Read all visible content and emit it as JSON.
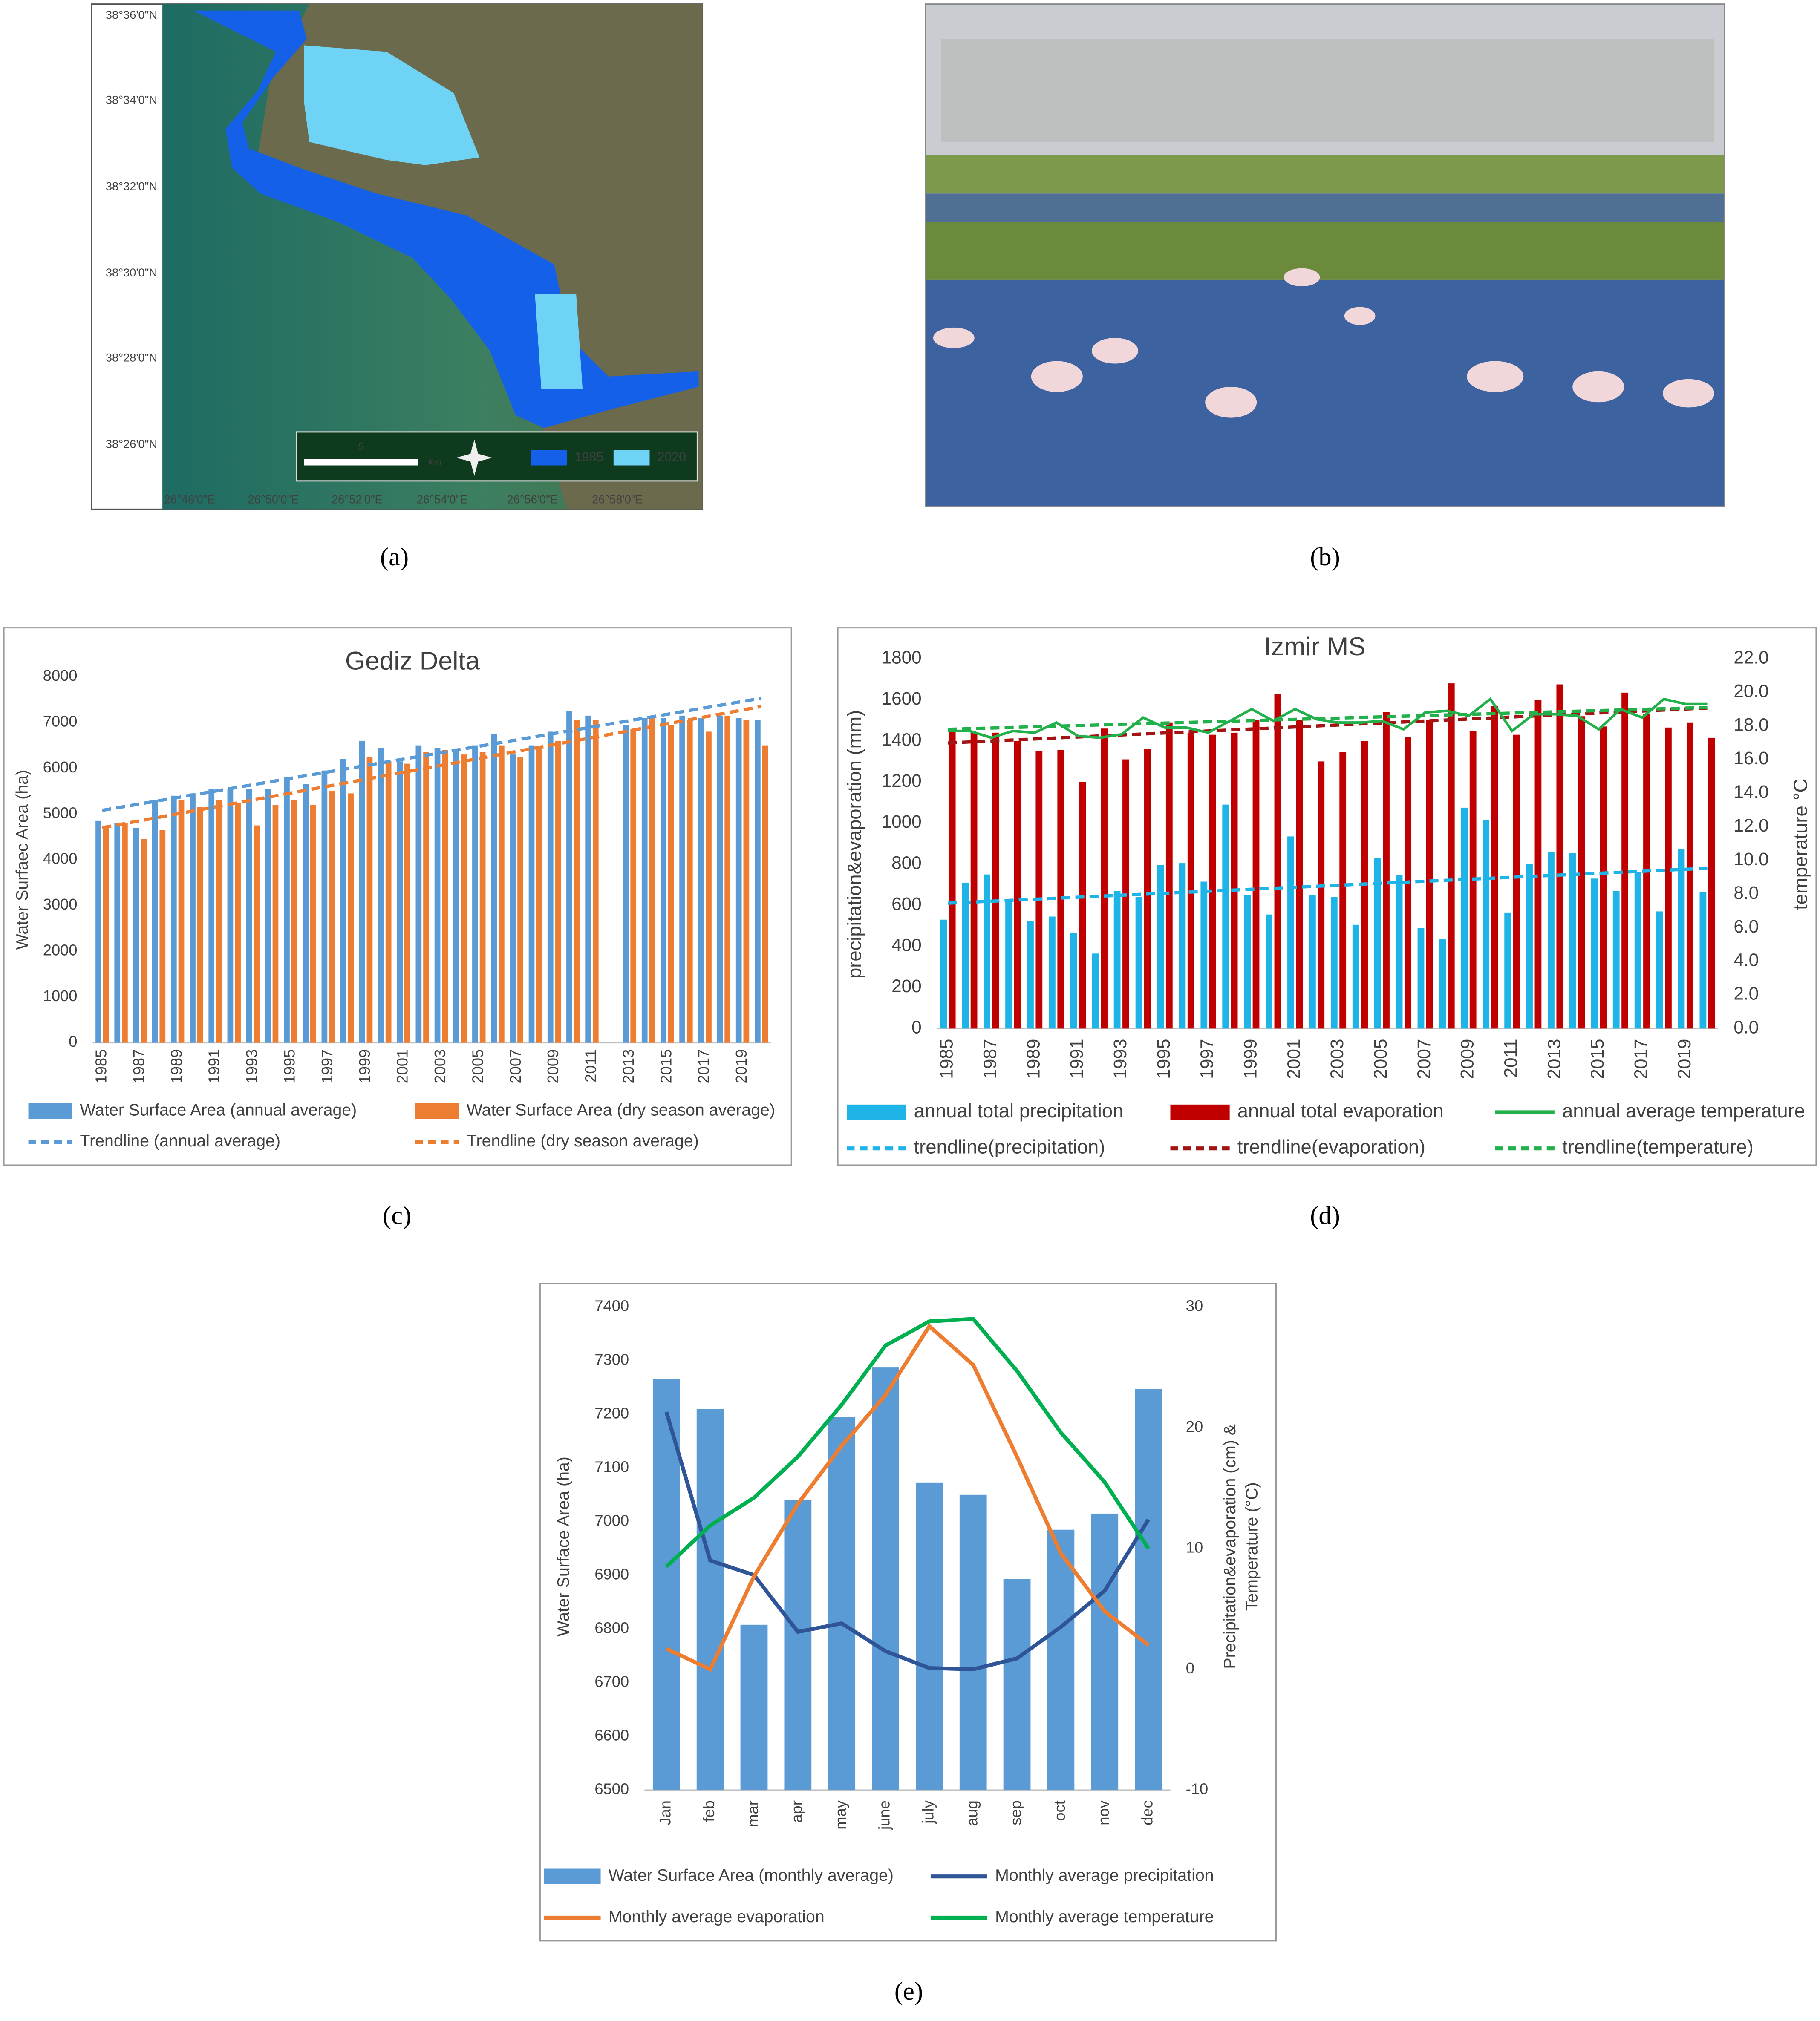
{
  "captions": [
    "(a)",
    "(b)",
    "(c)",
    "(d)",
    "(e)"
  ],
  "map": {
    "lat_labels": [
      "38°36'0\"N",
      "38°34'0\"N",
      "38°32'0\"N",
      "38°30'0\"N",
      "38°28'0\"N",
      "38°26'0\"N"
    ],
    "lon_labels": [
      "26°48'0\"E",
      "26°50'0\"E",
      "26°52'0\"E",
      "26°54'0\"E",
      "26°56'0\"E",
      "26°58'0\"E"
    ],
    "scale": [
      "5",
      "Km"
    ],
    "legend": [
      {
        "name": "1985",
        "color": "#1560e8"
      },
      {
        "name": "2020",
        "color": "#6fd3f5"
      }
    ]
  },
  "chart_data": [
    {
      "type": "bar",
      "title": "Gediz Delta",
      "ylabel": "Water Surfaec Area (ha)",
      "categories": [
        "1985",
        null,
        "1987",
        null,
        "1989",
        null,
        "1991",
        null,
        "1993",
        null,
        "1995",
        null,
        "1997",
        null,
        "1999",
        null,
        "2001",
        null,
        "2003",
        null,
        "2005",
        null,
        "2007",
        null,
        "2009",
        null,
        "2011",
        null,
        "2013",
        null,
        "2015",
        null,
        "2017",
        null,
        "2019",
        null
      ],
      "series": [
        {
          "name": "Water Surface Area (annual average)",
          "type": "bar",
          "color": "#5b9bd5",
          "values": [
            4850,
            4800,
            4700,
            5300,
            5400,
            5450,
            5550,
            5550,
            5550,
            5550,
            5800,
            5650,
            5950,
            6200,
            6600,
            6450,
            6150,
            6500,
            6450,
            6400,
            6500,
            6750,
            6300,
            6500,
            6800,
            7250,
            7150,
            null,
            6950,
            7100,
            7100,
            7150,
            7100,
            7150,
            7100,
            7050
          ]
        },
        {
          "name": "Water Surface Area (dry season average)",
          "type": "bar",
          "color": "#ed7d31",
          "values": [
            4700,
            4800,
            4450,
            4650,
            5300,
            5150,
            5300,
            5250,
            4750,
            5200,
            5300,
            5200,
            5500,
            5450,
            6250,
            6150,
            6100,
            6350,
            6400,
            6300,
            6350,
            6500,
            6250,
            6450,
            6600,
            7050,
            7050,
            null,
            6850,
            7100,
            6950,
            7050,
            6800,
            7150,
            7050,
            6500
          ]
        }
      ],
      "trendlines": [
        {
          "name": "Trendline (annual average)",
          "color": "#5b9bd5",
          "start": 5080,
          "end": 7530
        },
        {
          "name": "Trendline (dry season average)",
          "color": "#ed7d31",
          "start": 4700,
          "end": 7350
        }
      ],
      "ylim": [
        0,
        8000
      ],
      "yticks": [
        0,
        1000,
        2000,
        3000,
        4000,
        5000,
        6000,
        7000,
        8000
      ],
      "grid": false
    },
    {
      "type": "bar",
      "title": "Izmir MS",
      "ylabel": "precipitation&evaporation (mm)",
      "y2label": "temperature °C",
      "categories": [
        "1985",
        null,
        "1987",
        null,
        "1989",
        null,
        "1991",
        null,
        "1993",
        null,
        "1995",
        null,
        "1997",
        null,
        "1999",
        null,
        "2001",
        null,
        "2003",
        null,
        "2005",
        null,
        "2007",
        null,
        "2009",
        null,
        "2011",
        null,
        "2013",
        null,
        "2015",
        null,
        "2017",
        null,
        "2019",
        null
      ],
      "series": [
        {
          "name": "annual total precipitation",
          "type": "bar",
          "color": "#1fb4e8",
          "values": [
            530,
            710,
            750,
            625,
            525,
            545,
            465,
            365,
            670,
            640,
            795,
            805,
            715,
            1090,
            650,
            555,
            935,
            650,
            640,
            505,
            830,
            745,
            490,
            435,
            1075,
            1015,
            565,
            800,
            860,
            855,
            730,
            670,
            760,
            570,
            875,
            665
          ]
        },
        {
          "name": "annual total evaporation",
          "type": "bar",
          "color": "#c00000",
          "values": [
            1460,
            1440,
            1440,
            1400,
            1350,
            1355,
            1200,
            1460,
            1310,
            1360,
            1490,
            1440,
            1430,
            1440,
            1500,
            1630,
            1500,
            1300,
            1345,
            1400,
            1540,
            1420,
            1500,
            1680,
            1450,
            1570,
            1430,
            1600,
            1675,
            1520,
            1470,
            1635,
            1530,
            1465,
            1490,
            1415
          ]
        },
        {
          "name": "annual average temperature",
          "type": "line",
          "axis": "y2",
          "color": "#22b04a",
          "values": [
            17.7,
            17.7,
            17.3,
            17.7,
            17.6,
            18.2,
            17.4,
            17.3,
            17.5,
            18.5,
            17.9,
            17.9,
            17.6,
            18.3,
            19.0,
            18.3,
            19.0,
            18.4,
            18.2,
            18.2,
            18.3,
            17.8,
            18.8,
            18.9,
            18.6,
            19.6,
            17.7,
            18.7,
            18.7,
            18.6,
            17.8,
            19.0,
            18.5,
            19.6,
            19.3,
            19.3
          ]
        }
      ],
      "trendlines": [
        {
          "name": "trendline(precipitation)",
          "color": "#1fb4e8",
          "start": 610,
          "end": 780
        },
        {
          "name": "trendline(evaporation)",
          "color": "#a31515",
          "start": 1390,
          "end": 1560
        },
        {
          "name": "trendline(temperature)",
          "color": "#22b04a",
          "axis": "y2",
          "start": 17.8,
          "end": 19.1
        }
      ],
      "ylim": [
        0,
        1800
      ],
      "yticks": [
        0,
        200,
        400,
        600,
        800,
        1000,
        1200,
        1400,
        1600,
        1800
      ],
      "y2lim": [
        0,
        22
      ],
      "y2ticks": [
        {
          "value": 0,
          "label": "0.0"
        },
        {
          "value": 2,
          "label": "2.0"
        },
        {
          "value": 4,
          "label": "4.0"
        },
        {
          "value": 6,
          "label": "6.0"
        },
        {
          "value": 8,
          "label": "8.0"
        },
        {
          "value": 10,
          "label": "10.0"
        },
        {
          "value": 12,
          "label": "12.0"
        },
        {
          "value": 14,
          "label": "14.0"
        },
        {
          "value": 16,
          "label": "16.0"
        },
        {
          "value": 18,
          "label": "18.0"
        },
        {
          "value": 20,
          "label": "20.0"
        },
        {
          "value": 22,
          "label": "22.0"
        }
      ],
      "grid": false
    },
    {
      "type": "bar",
      "ylabel": "Water Surface Area (ha)",
      "y2label": [
        "Precipitation&evaporation (cm) &",
        "Temperature (°C)"
      ],
      "categories": [
        "Jan",
        "feb",
        "mar",
        "apr",
        "may",
        "june",
        "july",
        "aug",
        "sep",
        "oct",
        "nov",
        "dec"
      ],
      "series": [
        {
          "name": "Water Surface Area (monthly average)",
          "type": "bar",
          "color": "#5b9bd5",
          "values": [
            7265,
            7210,
            6808,
            7040,
            7195,
            7287,
            7073,
            7050,
            6893,
            6985,
            7015,
            7247
          ]
        },
        {
          "name": "Monthly average precipitation",
          "type": "line",
          "axis": "y2",
          "color": "#2f5597",
          "values": [
            21.3,
            9.0,
            7.8,
            3.1,
            3.8,
            1.5,
            0.1,
            0,
            0.9,
            3.5,
            6.5,
            12.4
          ]
        },
        {
          "name": "Monthly  average evaporation",
          "type": "line",
          "axis": "y2",
          "color": "#ed7d31",
          "values": [
            1.7,
            0,
            7.7,
            13.7,
            18.5,
            22.7,
            28.4,
            25.2,
            17.6,
            9.6,
            4.8,
            2.0
          ]
        },
        {
          "name": "Monthly  average temperature",
          "type": "line",
          "axis": "y2",
          "color": "#00b050",
          "values": [
            8.5,
            11.9,
            14.2,
            17.6,
            21.9,
            26.8,
            28.8,
            29.0,
            24.7,
            19.6,
            15.5,
            10.0
          ]
        }
      ],
      "ylim": [
        6500,
        7400
      ],
      "yticks": [
        6500,
        6600,
        6700,
        6800,
        6900,
        7000,
        7100,
        7200,
        7300,
        7400
      ],
      "y2lim": [
        -10,
        30
      ],
      "y2ticks": [
        -10,
        0,
        10,
        20,
        30
      ],
      "grid": false
    }
  ]
}
